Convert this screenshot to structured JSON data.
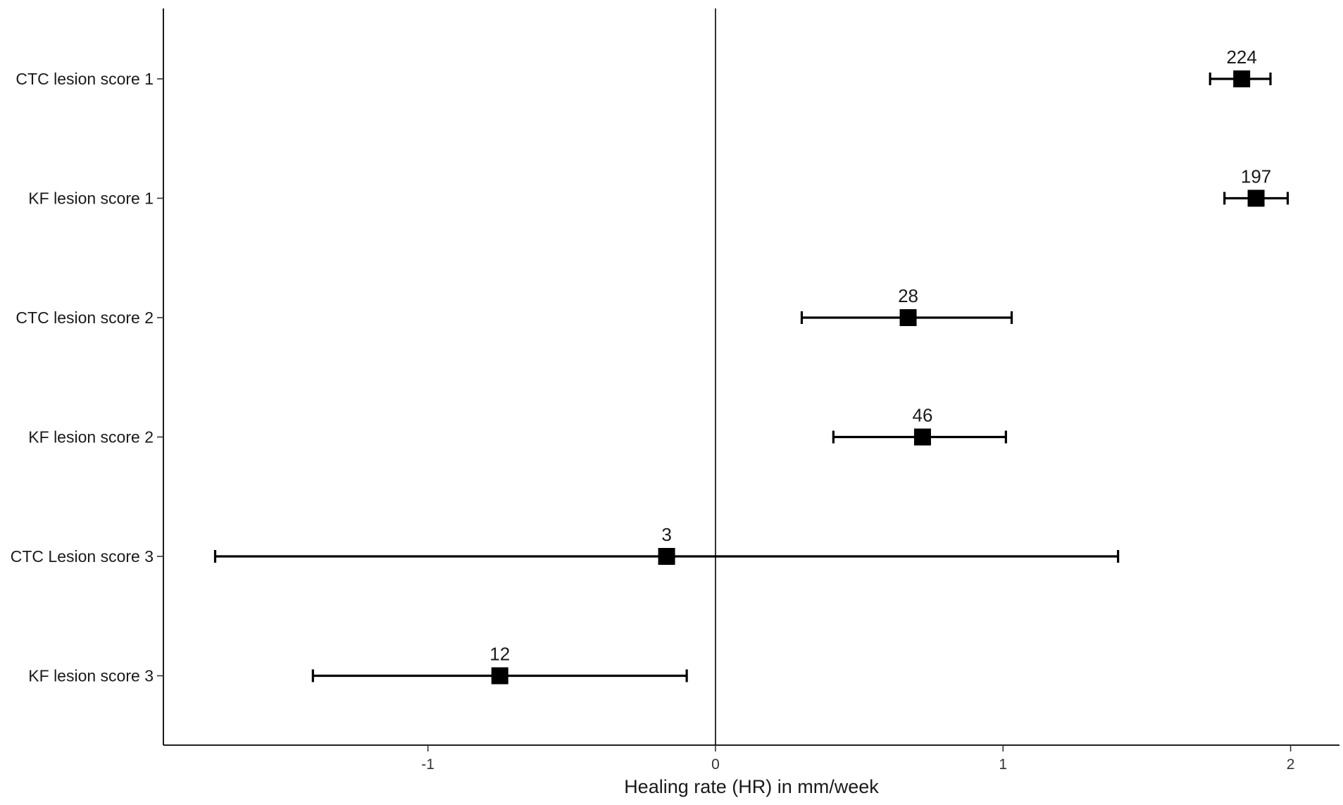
{
  "chart_data": {
    "type": "forest",
    "xlabel": "Healing rate (HR) in mm/week",
    "xlim": [
      -1.92,
      2.17
    ],
    "xticks": [
      -1,
      0,
      1,
      2
    ],
    "reference_line_x": 0,
    "grid": false,
    "categories": [
      "CTC lesion score 1",
      "KF lesion score 1",
      "CTC lesion score 2",
      "KF lesion score 2",
      "CTC Lesion score 3",
      "KF lesion score 3"
    ],
    "estimates": [
      1.83,
      1.88,
      0.67,
      0.72,
      -0.17,
      -0.75
    ],
    "ci_lower": [
      1.72,
      1.77,
      0.3,
      0.41,
      -1.74,
      -1.4
    ],
    "ci_upper": [
      1.93,
      1.99,
      1.03,
      1.01,
      1.4,
      -0.1
    ],
    "n_labels": [
      "224",
      "197",
      "28",
      "46",
      "3",
      "12"
    ]
  }
}
